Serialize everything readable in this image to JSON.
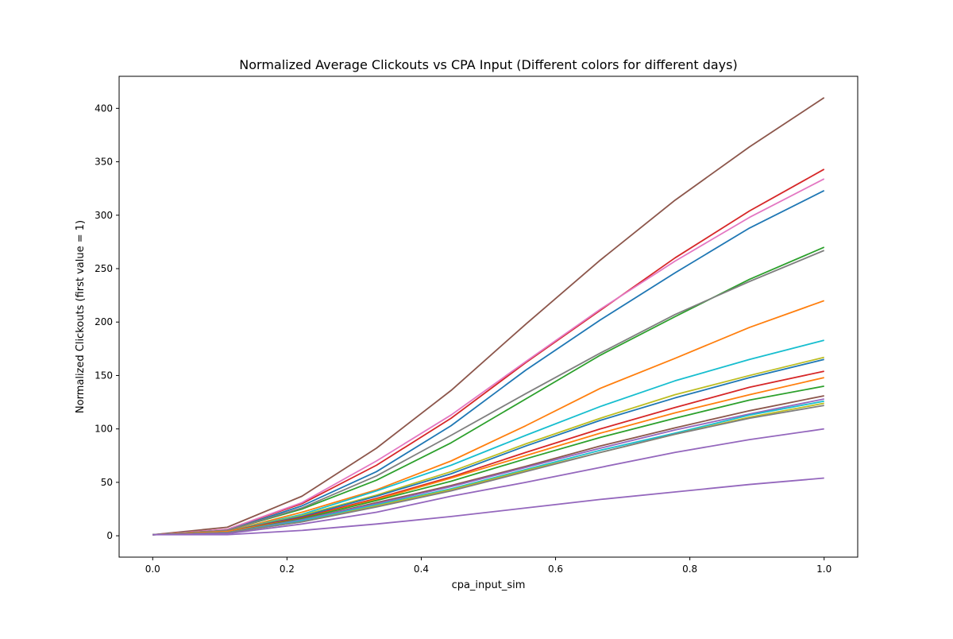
{
  "chart_data": {
    "type": "line",
    "title": "Normalized Average Clickouts vs CPA Input (Different colors for different days)",
    "xlabel": "cpa_input_sim",
    "ylabel": "Normalized Clickouts (first value = 1)",
    "xlim": [
      -0.05,
      1.05
    ],
    "ylim": [
      -20,
      430
    ],
    "x_ticks": [
      0.0,
      0.2,
      0.4,
      0.6,
      0.8,
      1.0
    ],
    "x_tick_labels": [
      "0.0",
      "0.2",
      "0.4",
      "0.6",
      "0.8",
      "1.0"
    ],
    "y_ticks": [
      0,
      50,
      100,
      150,
      200,
      250,
      300,
      350,
      400
    ],
    "y_tick_labels": [
      "0",
      "50",
      "100",
      "150",
      "200",
      "250",
      "300",
      "350",
      "400"
    ],
    "grid": false,
    "legend": "none",
    "x": [
      0.0,
      0.1111,
      0.2222,
      0.3333,
      0.4444,
      0.5556,
      0.6667,
      0.7778,
      0.8889,
      1.0
    ],
    "series": [
      {
        "color": "#8c564b",
        "values": [
          1,
          8,
          37,
          82,
          136,
          198,
          258,
          314,
          364,
          410
        ]
      },
      {
        "color": "#d62728",
        "values": [
          1,
          6,
          30,
          66,
          110,
          162,
          211,
          260,
          304,
          343
        ]
      },
      {
        "color": "#e377c2",
        "values": [
          1,
          6,
          31,
          70,
          113,
          163,
          212,
          257,
          298,
          334
        ]
      },
      {
        "color": "#1f77b4",
        "values": [
          1,
          5,
          28,
          60,
          103,
          155,
          202,
          246,
          288,
          323
        ]
      },
      {
        "color": "#2ca02c",
        "values": [
          1,
          5,
          25,
          52,
          87,
          128,
          169,
          205,
          240,
          270
        ]
      },
      {
        "color": "#7f7f7f",
        "values": [
          1,
          5,
          26,
          56,
          94,
          133,
          171,
          207,
          238,
          267
        ]
      },
      {
        "color": "#ff7f0e",
        "values": [
          1,
          4,
          22,
          43,
          70,
          103,
          138,
          166,
          195,
          220
        ]
      },
      {
        "color": "#17becf",
        "values": [
          1,
          4,
          20,
          42,
          66,
          94,
          121,
          145,
          165,
          183
        ]
      },
      {
        "color": "#bcbd22",
        "values": [
          1,
          4,
          19,
          38,
          60,
          86,
          110,
          132,
          150,
          167
        ]
      },
      {
        "color": "#1f77b4",
        "values": [
          1,
          4,
          18,
          37,
          58,
          84,
          108,
          129,
          148,
          165
        ]
      },
      {
        "color": "#d62728",
        "values": [
          1,
          4,
          17,
          35,
          55,
          78,
          100,
          120,
          139,
          154
        ]
      },
      {
        "color": "#ff7f0e",
        "values": [
          1,
          4,
          16,
          34,
          54,
          75,
          96,
          115,
          132,
          148
        ]
      },
      {
        "color": "#2ca02c",
        "values": [
          1,
          3,
          16,
          33,
          51,
          72,
          92,
          110,
          127,
          140
        ]
      },
      {
        "color": "#8c564b",
        "values": [
          1,
          3,
          15,
          31,
          47,
          65,
          84,
          101,
          117,
          131
        ]
      },
      {
        "color": "#9467bd",
        "values": [
          1,
          3,
          15,
          30,
          46,
          64,
          82,
          99,
          114,
          128
        ]
      },
      {
        "color": "#17becf",
        "values": [
          1,
          3,
          14,
          29,
          44,
          62,
          80,
          96,
          113,
          126
        ]
      },
      {
        "color": "#bcbd22",
        "values": [
          1,
          3,
          13,
          28,
          43,
          61,
          78,
          95,
          111,
          124
        ]
      },
      {
        "color": "#7f7f7f",
        "values": [
          1,
          3,
          13,
          27,
          42,
          60,
          78,
          95,
          110,
          122
        ]
      },
      {
        "color": "#9467bd",
        "values": [
          1,
          2,
          11,
          22,
          37,
          50,
          64,
          78,
          90,
          100
        ]
      },
      {
        "color": "#9467bd",
        "values": [
          1,
          1,
          5,
          11,
          18,
          26,
          34,
          41,
          48,
          54
        ]
      }
    ]
  }
}
